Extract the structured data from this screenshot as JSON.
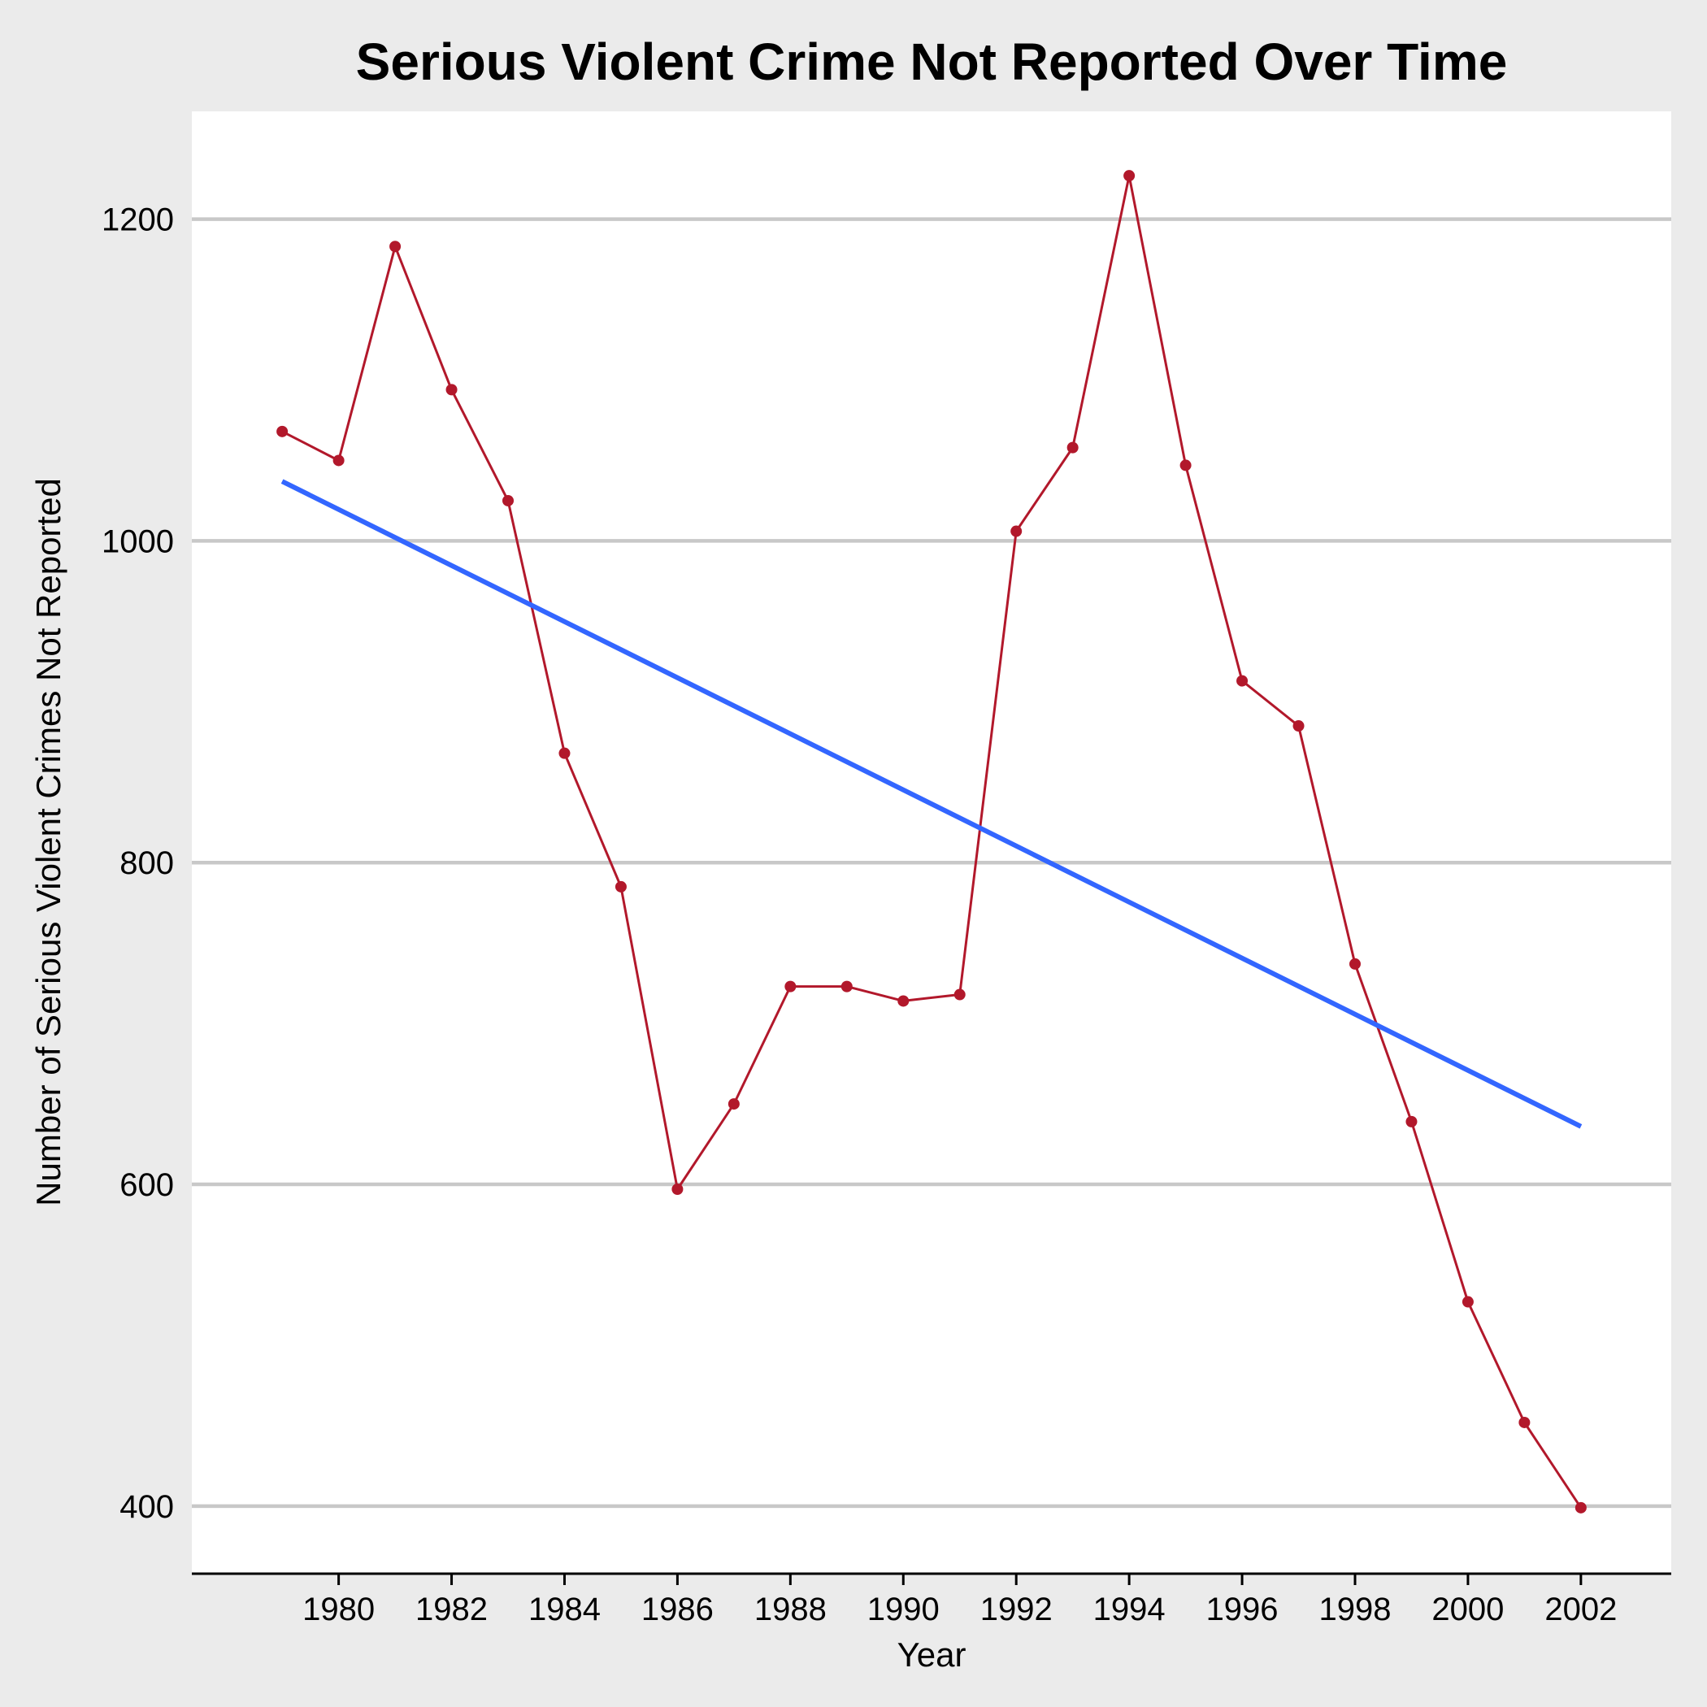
{
  "chart_data": {
    "type": "line",
    "title": "Serious Violent Crime Not Reported Over Time",
    "xlabel": "Year",
    "ylabel": "Number of Serious Violent Crimes Not Reported",
    "xlim": [
      1977.4,
      2003.6
    ],
    "ylim": [
      358,
      1267
    ],
    "x_ticks": [
      1980,
      1982,
      1984,
      1986,
      1988,
      1990,
      1992,
      1994,
      1996,
      1998,
      2000,
      2002
    ],
    "y_ticks": [
      400,
      600,
      800,
      1000,
      1200
    ],
    "grid": "horizontal",
    "series": [
      {
        "color": "#b2182b",
        "markers": true,
        "x": [
          1979,
          1980,
          1981,
          1982,
          1983,
          1984,
          1985,
          1986,
          1987,
          1988,
          1989,
          1990,
          1991,
          1992,
          1993,
          1994,
          1995,
          1996,
          1997,
          1998,
          1999,
          2000,
          2001,
          2002
        ],
        "y": [
          1068,
          1050,
          1183,
          1094,
          1025,
          868,
          785,
          597,
          650,
          723,
          723,
          714,
          718,
          1006,
          1058,
          1227,
          1047,
          913,
          885,
          737,
          639,
          527,
          452,
          399
        ]
      },
      {
        "color": "#3366ff",
        "markers": false,
        "x": [
          1979,
          2002
        ],
        "y": [
          1037,
          636
        ]
      }
    ]
  }
}
